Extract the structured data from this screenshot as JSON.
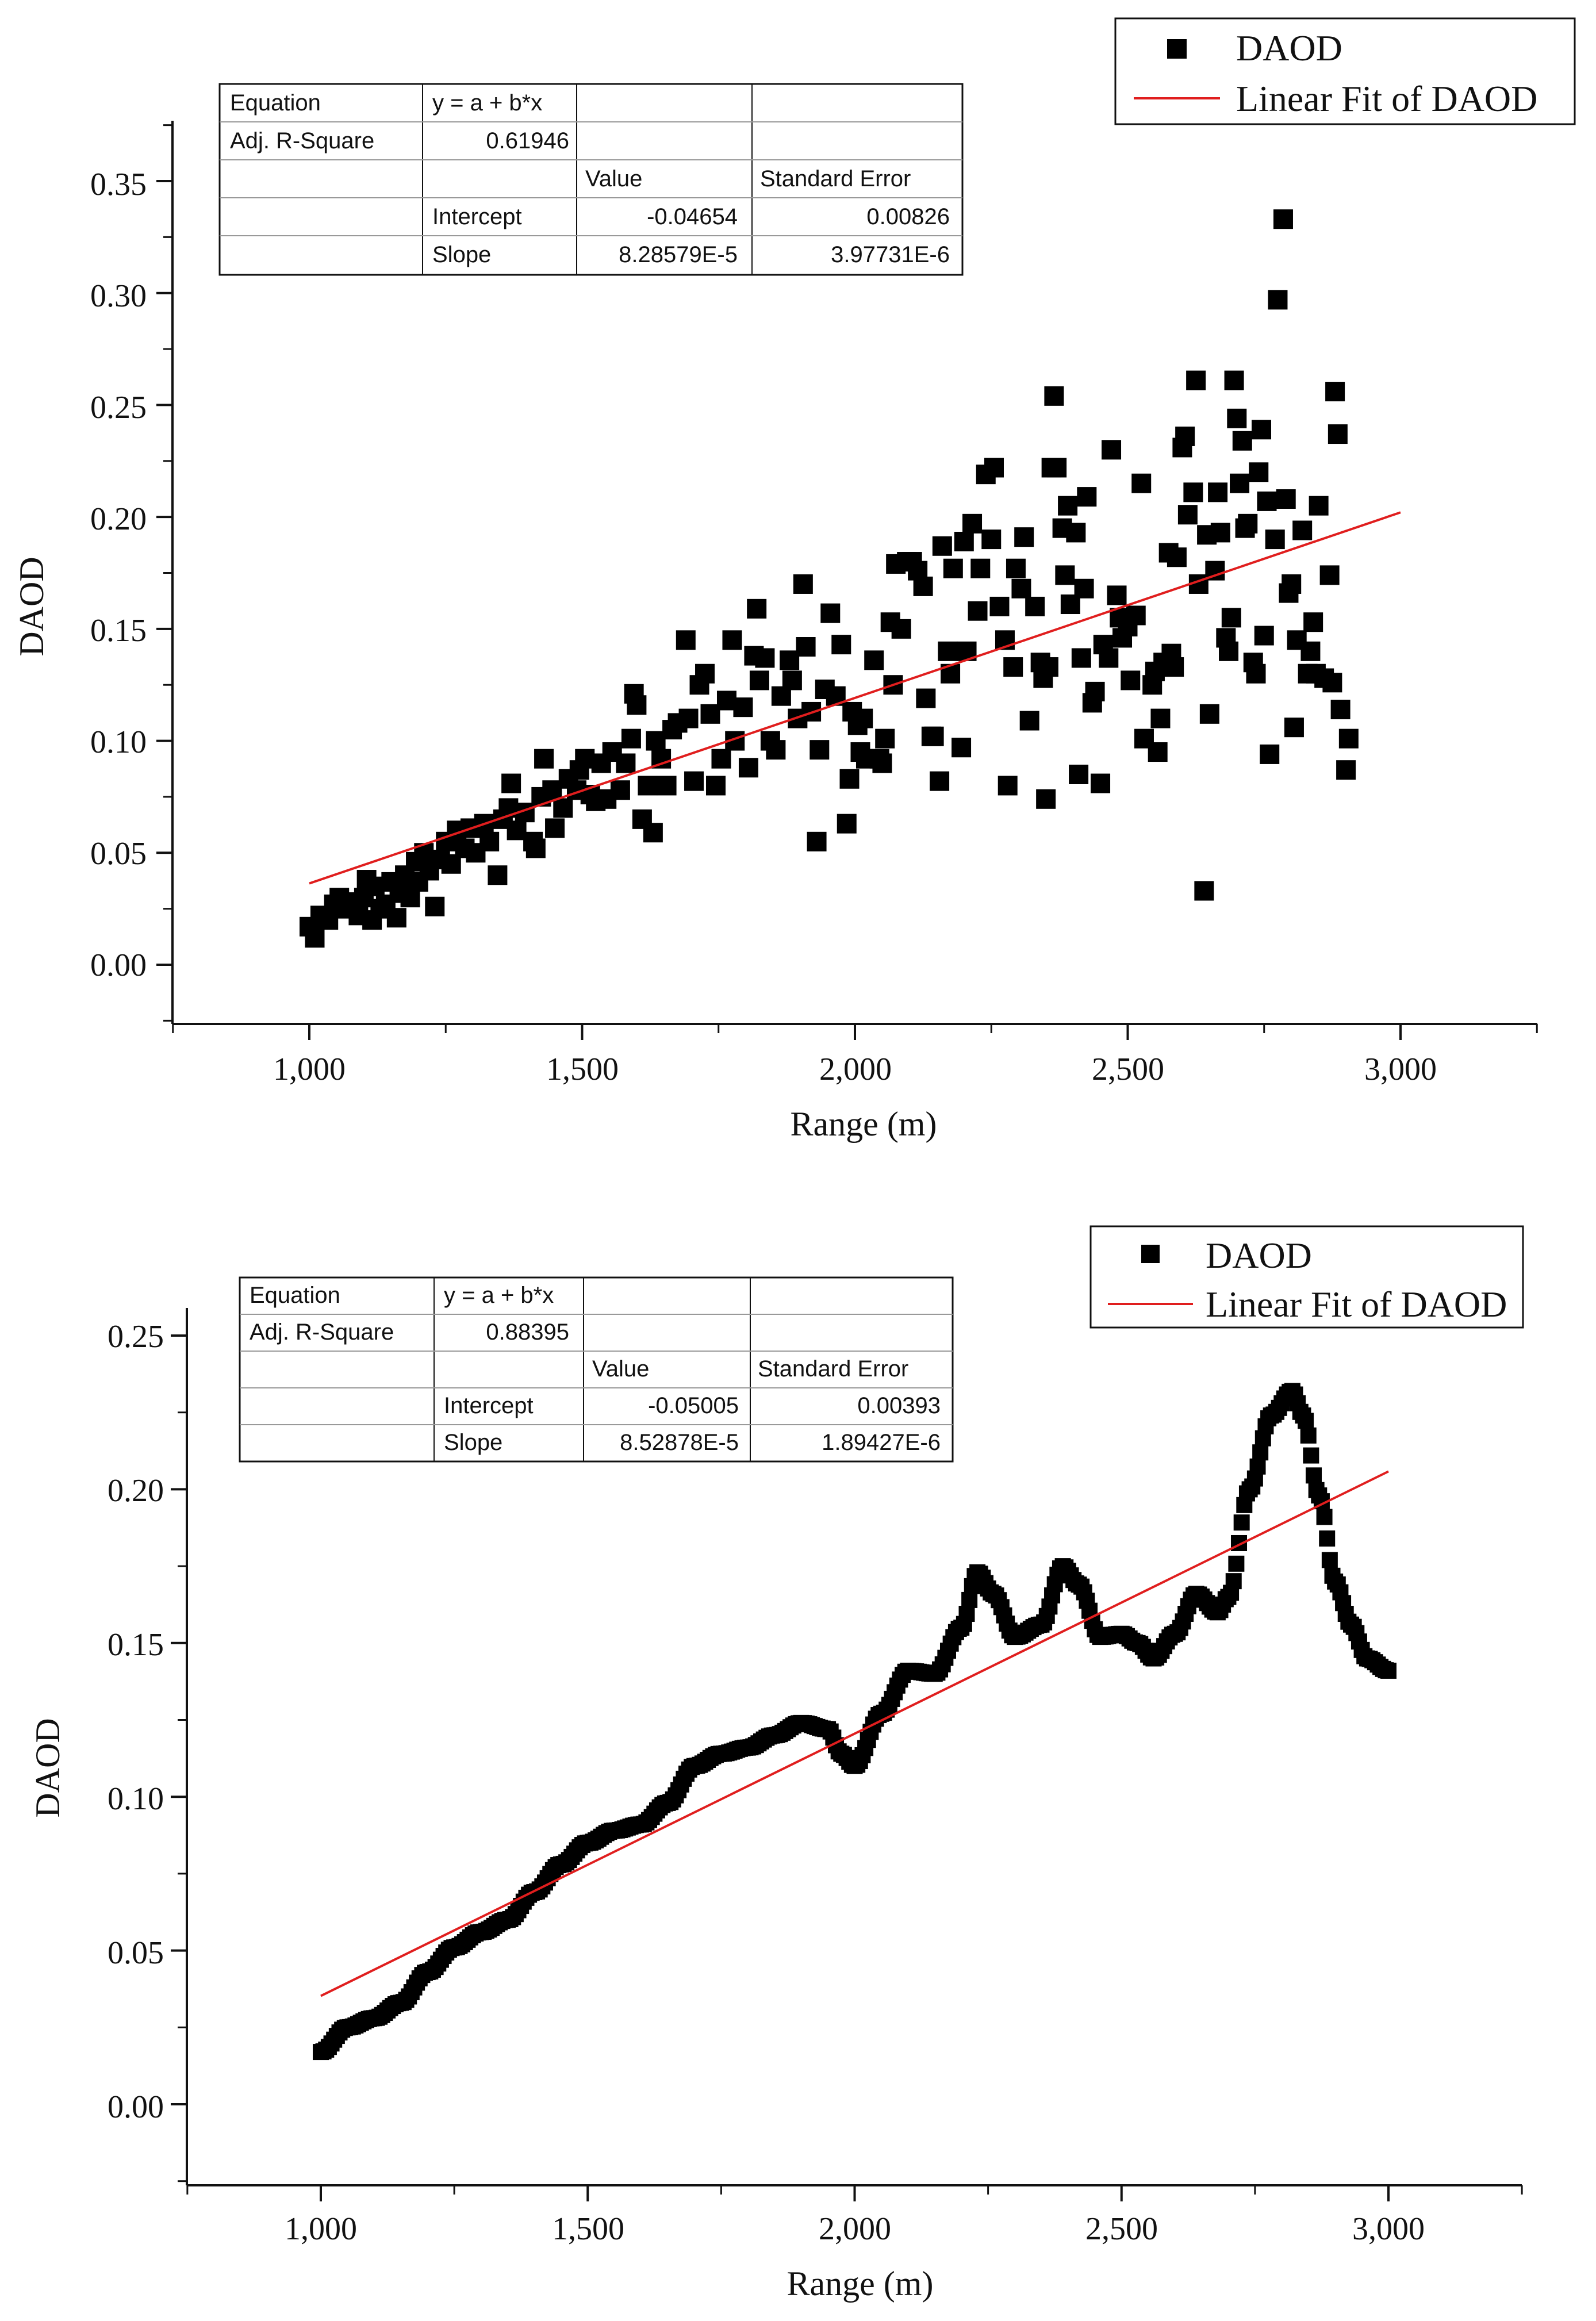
{
  "chart_data": [
    {
      "type": "scatter",
      "xlabel": "Range (m)",
      "ylabel": "DAOD",
      "xlim": [
        750,
        3250
      ],
      "ylim": [
        -0.025,
        0.375
      ],
      "x_ticks": [
        "1,000",
        "1,500",
        "2,000",
        "2,500",
        "3,000"
      ],
      "y_ticks": [
        "0.00",
        "0.05",
        "0.10",
        "0.15",
        "0.20",
        "0.25",
        "0.30",
        "0.35"
      ],
      "legend": {
        "position": "top-right",
        "marker_label": "DAOD",
        "line_label": "Linear Fit of DAOD"
      },
      "fit_table": {
        "equation_label": "Equation",
        "equation": "y = a + b*x",
        "r2_label": "Adj. R-Square",
        "r2": "0.61946",
        "value_header": "Value",
        "error_header": "Standard Error",
        "intercept_label": "Intercept",
        "intercept_value": "-0.04654",
        "intercept_error": "0.00826",
        "slope_label": "Slope",
        "slope_value": "8.28579E-5",
        "slope_error": "3.97731E-6"
      },
      "fit": {
        "intercept": -0.04654,
        "slope": 8.28579e-05,
        "x_range": [
          1000,
          3000
        ]
      },
      "points": [
        [
          1000,
          0.017
        ],
        [
          1010,
          0.012
        ],
        [
          1020,
          0.022
        ],
        [
          1035,
          0.02
        ],
        [
          1045,
          0.027
        ],
        [
          1055,
          0.03
        ],
        [
          1070,
          0.025
        ],
        [
          1080,
          0.028
        ],
        [
          1090,
          0.022
        ],
        [
          1100,
          0.03
        ],
        [
          1105,
          0.038
        ],
        [
          1115,
          0.02
        ],
        [
          1120,
          0.035
        ],
        [
          1130,
          0.025
        ],
        [
          1140,
          0.027
        ],
        [
          1150,
          0.037
        ],
        [
          1160,
          0.021
        ],
        [
          1165,
          0.032
        ],
        [
          1175,
          0.04
        ],
        [
          1185,
          0.03
        ],
        [
          1195,
          0.046
        ],
        [
          1200,
          0.037
        ],
        [
          1210,
          0.05
        ],
        [
          1220,
          0.042
        ],
        [
          1230,
          0.026
        ],
        [
          1240,
          0.047
        ],
        [
          1250,
          0.055
        ],
        [
          1260,
          0.045
        ],
        [
          1270,
          0.06
        ],
        [
          1285,
          0.052
        ],
        [
          1295,
          0.061
        ],
        [
          1305,
          0.05
        ],
        [
          1320,
          0.063
        ],
        [
          1330,
          0.055
        ],
        [
          1345,
          0.04
        ],
        [
          1355,
          0.065
        ],
        [
          1365,
          0.07
        ],
        [
          1370,
          0.081
        ],
        [
          1380,
          0.06
        ],
        [
          1395,
          0.068
        ],
        [
          1410,
          0.055
        ],
        [
          1415,
          0.052
        ],
        [
          1425,
          0.075
        ],
        [
          1430,
          0.092
        ],
        [
          1445,
          0.078
        ],
        [
          1450,
          0.061
        ],
        [
          1465,
          0.07
        ],
        [
          1475,
          0.083
        ],
        [
          1490,
          0.078
        ],
        [
          1495,
          0.087
        ],
        [
          1505,
          0.092
        ],
        [
          1515,
          0.076
        ],
        [
          1525,
          0.073
        ],
        [
          1535,
          0.09
        ],
        [
          1545,
          0.074
        ],
        [
          1555,
          0.095
        ],
        [
          1570,
          0.078
        ],
        [
          1580,
          0.09
        ],
        [
          1590,
          0.101
        ],
        [
          1595,
          0.121
        ],
        [
          1600,
          0.116
        ],
        [
          1610,
          0.065
        ],
        [
          1620,
          0.08
        ],
        [
          1630,
          0.059
        ],
        [
          1635,
          0.1
        ],
        [
          1645,
          0.092
        ],
        [
          1655,
          0.08
        ],
        [
          1665,
          0.105
        ],
        [
          1675,
          0.108
        ],
        [
          1690,
          0.145
        ],
        [
          1695,
          0.11
        ],
        [
          1705,
          0.082
        ],
        [
          1715,
          0.125
        ],
        [
          1725,
          0.13
        ],
        [
          1735,
          0.112
        ],
        [
          1745,
          0.08
        ],
        [
          1755,
          0.092
        ],
        [
          1765,
          0.118
        ],
        [
          1775,
          0.145
        ],
        [
          1780,
          0.1
        ],
        [
          1795,
          0.115
        ],
        [
          1805,
          0.088
        ],
        [
          1815,
          0.138
        ],
        [
          1820,
          0.159
        ],
        [
          1825,
          0.127
        ],
        [
          1835,
          0.137
        ],
        [
          1845,
          0.1
        ],
        [
          1855,
          0.096
        ],
        [
          1865,
          0.12
        ],
        [
          1880,
          0.136
        ],
        [
          1885,
          0.127
        ],
        [
          1895,
          0.11
        ],
        [
          1905,
          0.17
        ],
        [
          1910,
          0.142
        ],
        [
          1920,
          0.113
        ],
        [
          1930,
          0.055
        ],
        [
          1935,
          0.096
        ],
        [
          1945,
          0.123
        ],
        [
          1955,
          0.157
        ],
        [
          1965,
          0.12
        ],
        [
          1975,
          0.143
        ],
        [
          1985,
          0.063
        ],
        [
          1990,
          0.083
        ],
        [
          1995,
          0.113
        ],
        [
          2005,
          0.107
        ],
        [
          2010,
          0.095
        ],
        [
          2015,
          0.11
        ],
        [
          2020,
          0.092
        ],
        [
          2035,
          0.136
        ],
        [
          2045,
          0.092
        ],
        [
          2050,
          0.09
        ],
        [
          2055,
          0.101
        ],
        [
          2065,
          0.153
        ],
        [
          2070,
          0.125
        ],
        [
          2075,
          0.179
        ],
        [
          2085,
          0.15
        ],
        [
          2095,
          0.18
        ],
        [
          2105,
          0.18
        ],
        [
          2115,
          0.176
        ],
        [
          2125,
          0.169
        ],
        [
          2130,
          0.119
        ],
        [
          2140,
          0.102
        ],
        [
          2145,
          0.102
        ],
        [
          2155,
          0.082
        ],
        [
          2160,
          0.187
        ],
        [
          2170,
          0.14
        ],
        [
          2175,
          0.13
        ],
        [
          2180,
          0.177
        ],
        [
          2195,
          0.097
        ],
        [
          2200,
          0.189
        ],
        [
          2205,
          0.14
        ],
        [
          2215,
          0.197
        ],
        [
          2225,
          0.158
        ],
        [
          2230,
          0.177
        ],
        [
          2240,
          0.219
        ],
        [
          2250,
          0.19
        ],
        [
          2255,
          0.222
        ],
        [
          2265,
          0.16
        ],
        [
          2275,
          0.145
        ],
        [
          2280,
          0.08
        ],
        [
          2290,
          0.133
        ],
        [
          2295,
          0.177
        ],
        [
          2305,
          0.168
        ],
        [
          2310,
          0.191
        ],
        [
          2320,
          0.109
        ],
        [
          2330,
          0.16
        ],
        [
          2340,
          0.135
        ],
        [
          2345,
          0.128
        ],
        [
          2350,
          0.074
        ],
        [
          2355,
          0.133
        ],
        [
          2360,
          0.222
        ],
        [
          2365,
          0.254
        ],
        [
          2370,
          0.222
        ],
        [
          2380,
          0.195
        ],
        [
          2385,
          0.174
        ],
        [
          2390,
          0.205
        ],
        [
          2395,
          0.161
        ],
        [
          2405,
          0.193
        ],
        [
          2410,
          0.085
        ],
        [
          2415,
          0.137
        ],
        [
          2420,
          0.168
        ],
        [
          2425,
          0.209
        ],
        [
          2435,
          0.117
        ],
        [
          2440,
          0.122
        ],
        [
          2450,
          0.081
        ],
        [
          2455,
          0.143
        ],
        [
          2465,
          0.137
        ],
        [
          2470,
          0.23
        ],
        [
          2480,
          0.165
        ],
        [
          2485,
          0.155
        ],
        [
          2490,
          0.146
        ],
        [
          2500,
          0.151
        ],
        [
          2505,
          0.127
        ],
        [
          2515,
          0.156
        ],
        [
          2525,
          0.215
        ],
        [
          2530,
          0.101
        ],
        [
          2545,
          0.125
        ],
        [
          2550,
          0.131
        ],
        [
          2555,
          0.095
        ],
        [
          2560,
          0.11
        ],
        [
          2565,
          0.135
        ],
        [
          2575,
          0.184
        ],
        [
          2580,
          0.139
        ],
        [
          2585,
          0.133
        ],
        [
          2590,
          0.182
        ],
        [
          2600,
          0.231
        ],
        [
          2605,
          0.236
        ],
        [
          2610,
          0.201
        ],
        [
          2620,
          0.211
        ],
        [
          2625,
          0.261
        ],
        [
          2630,
          0.17
        ],
        [
          2640,
          0.033
        ],
        [
          2645,
          0.192
        ],
        [
          2650,
          0.112
        ],
        [
          2660,
          0.176
        ],
        [
          2665,
          0.211
        ],
        [
          2670,
          0.193
        ],
        [
          2680,
          0.146
        ],
        [
          2685,
          0.14
        ],
        [
          2690,
          0.155
        ],
        [
          2695,
          0.261
        ],
        [
          2700,
          0.244
        ],
        [
          2705,
          0.215
        ],
        [
          2710,
          0.234
        ],
        [
          2715,
          0.195
        ],
        [
          2720,
          0.197
        ],
        [
          2730,
          0.135
        ],
        [
          2735,
          0.13
        ],
        [
          2740,
          0.22
        ],
        [
          2745,
          0.239
        ],
        [
          2750,
          0.147
        ],
        [
          2755,
          0.207
        ],
        [
          2760,
          0.094
        ],
        [
          2770,
          0.19
        ],
        [
          2775,
          0.297
        ],
        [
          2785,
          0.333
        ],
        [
          2790,
          0.208
        ],
        [
          2795,
          0.166
        ],
        [
          2800,
          0.17
        ],
        [
          2805,
          0.106
        ],
        [
          2810,
          0.145
        ],
        [
          2820,
          0.194
        ],
        [
          2830,
          0.13
        ],
        [
          2835,
          0.14
        ],
        [
          2840,
          0.153
        ],
        [
          2845,
          0.13
        ],
        [
          2850,
          0.205
        ],
        [
          2860,
          0.128
        ],
        [
          2870,
          0.174
        ],
        [
          2875,
          0.126
        ],
        [
          2880,
          0.256
        ],
        [
          2885,
          0.237
        ],
        [
          2890,
          0.114
        ],
        [
          2900,
          0.087
        ],
        [
          2905,
          0.101
        ]
      ]
    },
    {
      "type": "scatter",
      "xlabel": "Range (m)",
      "ylabel": "DAOD",
      "xlim": [
        750,
        3250
      ],
      "ylim": [
        -0.025,
        0.25
      ],
      "x_ticks": [
        "1,000",
        "1,500",
        "2,000",
        "2,500",
        "3,000"
      ],
      "y_ticks": [
        "0.00",
        "0.05",
        "0.10",
        "0.15",
        "0.20",
        "0.25"
      ],
      "legend": {
        "position": "top-right",
        "marker_label": "DAOD",
        "line_label": "Linear Fit of DAOD"
      },
      "fit_table": {
        "equation_label": "Equation",
        "equation": "y = a + b*x",
        "r2_label": "Adj. R-Square",
        "r2": "0.88395",
        "value_header": "Value",
        "error_header": "Standard Error",
        "intercept_label": "Intercept",
        "intercept_value": "-0.05005",
        "intercept_error": "0.00393",
        "slope_label": "Slope",
        "slope_value": "8.52878E-5",
        "slope_error": "1.89427E-6"
      },
      "fit": {
        "intercept": -0.05005,
        "slope": 8.52878e-05,
        "x_range": [
          1000,
          3000
        ]
      },
      "curve_points": [
        [
          1000,
          0.017
        ],
        [
          1050,
          0.025
        ],
        [
          1100,
          0.028
        ],
        [
          1150,
          0.033
        ],
        [
          1200,
          0.043
        ],
        [
          1250,
          0.051
        ],
        [
          1300,
          0.056
        ],
        [
          1350,
          0.06
        ],
        [
          1400,
          0.069
        ],
        [
          1450,
          0.078
        ],
        [
          1500,
          0.085
        ],
        [
          1550,
          0.089
        ],
        [
          1600,
          0.091
        ],
        [
          1650,
          0.098
        ],
        [
          1700,
          0.11
        ],
        [
          1750,
          0.114
        ],
        [
          1800,
          0.116
        ],
        [
          1850,
          0.12
        ],
        [
          1900,
          0.124
        ],
        [
          1950,
          0.122
        ],
        [
          1975,
          0.114
        ],
        [
          2000,
          0.11
        ],
        [
          2050,
          0.127
        ],
        [
          2100,
          0.141
        ],
        [
          2150,
          0.14
        ],
        [
          2200,
          0.155
        ],
        [
          2230,
          0.173
        ],
        [
          2260,
          0.166
        ],
        [
          2300,
          0.152
        ],
        [
          2350,
          0.156
        ],
        [
          2390,
          0.175
        ],
        [
          2420,
          0.169
        ],
        [
          2460,
          0.152
        ],
        [
          2500,
          0.153
        ],
        [
          2530,
          0.15
        ],
        [
          2560,
          0.145
        ],
        [
          2600,
          0.153
        ],
        [
          2640,
          0.166
        ],
        [
          2680,
          0.16
        ],
        [
          2700,
          0.165
        ],
        [
          2740,
          0.2
        ],
        [
          2780,
          0.224
        ],
        [
          2820,
          0.232
        ],
        [
          2840,
          0.224
        ],
        [
          2870,
          0.198
        ],
        [
          2900,
          0.17
        ],
        [
          2930,
          0.156
        ],
        [
          2960,
          0.145
        ],
        [
          3000,
          0.141
        ]
      ]
    }
  ]
}
